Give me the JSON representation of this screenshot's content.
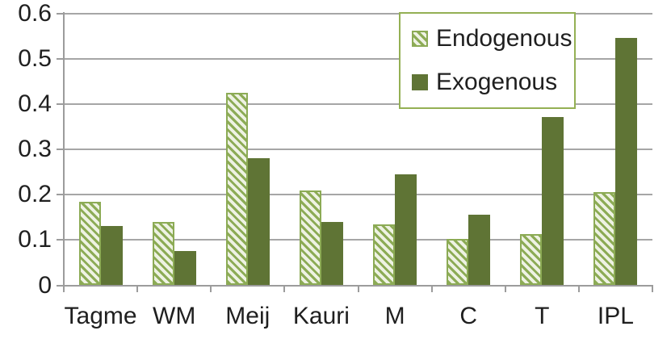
{
  "chart_data": {
    "type": "bar",
    "categories": [
      "Tagme",
      "WM",
      "Meij",
      "Kauri",
      "M",
      "C",
      "T",
      "IPL"
    ],
    "series": [
      {
        "name": "Endogenous",
        "pattern": "diagonal-hatch",
        "values": [
          0.185,
          0.14,
          0.425,
          0.21,
          0.135,
          0.102,
          0.113,
          0.205
        ]
      },
      {
        "name": "Exogenous",
        "pattern": "solid",
        "values": [
          0.13,
          0.075,
          0.28,
          0.14,
          0.245,
          0.155,
          0.372,
          0.545
        ]
      }
    ],
    "title": "",
    "xlabel": "",
    "ylabel": "",
    "ylim": [
      0,
      0.6
    ],
    "ytick_values": [
      0,
      0.1,
      0.2,
      0.3,
      0.4,
      0.5,
      0.6
    ],
    "ytick_labels": [
      "0",
      "0.1",
      "0.2",
      "0.3",
      "0.4",
      "0.5",
      "0.6"
    ],
    "grid": true,
    "legend_position": "top-right-inside"
  },
  "legend": {
    "items": [
      {
        "label": "Endogenous",
        "swatch": "hatched-diagonal"
      },
      {
        "label": "Exogenous",
        "swatch": "solid"
      }
    ]
  },
  "colors": {
    "solid_bar": "#5f7435",
    "hatch_stripe": "#8cab55",
    "hatch_bg": "#eef2e3",
    "hatch_border": "#8cab55",
    "legend_border": "#94b054",
    "gridline": "#a6a6a6",
    "axis": "#9c9c9c",
    "text": "#1f1f1f"
  }
}
